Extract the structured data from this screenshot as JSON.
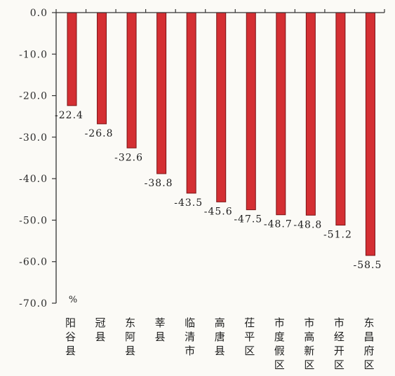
{
  "chart_data": {
    "type": "bar",
    "categories": [
      "阳谷县",
      "冠县",
      "东阿县",
      "莘县",
      "临清市",
      "高唐县",
      "茌平区",
      "市度假区",
      "市高新区",
      "市经开区",
      "东昌府区"
    ],
    "values": [
      -22.4,
      -26.8,
      -32.6,
      -38.8,
      -43.5,
      -45.6,
      -47.5,
      -48.7,
      -48.8,
      -51.2,
      -58.5
    ],
    "data_labels": [
      "-22.4",
      "-26.8",
      "-32.6",
      "-38.8",
      "-43.5",
      "-45.6",
      "-47.5",
      "-48.7",
      "-48.8",
      "-51.2",
      "-58.5"
    ],
    "y_ticks": [
      0,
      -10,
      -20,
      -30,
      -40,
      -50,
      -60,
      -70
    ],
    "y_tick_labels": [
      "0.0",
      "-10.0",
      "-20.0",
      "-30.0",
      "-40.0",
      "-50.0",
      "-60.0",
      "-70.0"
    ],
    "unit": "%",
    "ylim": [
      -70,
      0
    ],
    "grid": false,
    "bar_color": "#d42f33",
    "bar_edge_color": "#7a1416"
  }
}
